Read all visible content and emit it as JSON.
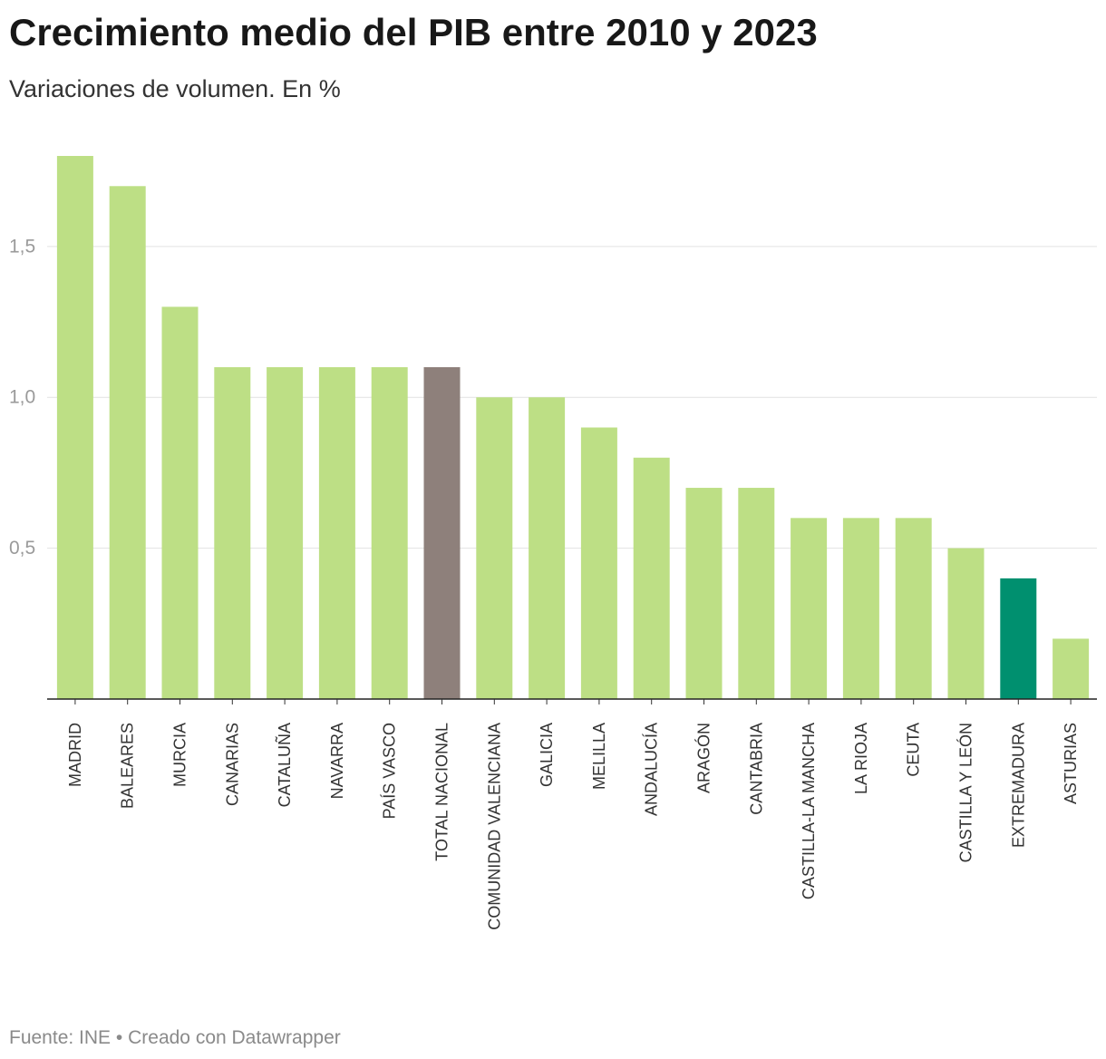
{
  "chart_data": {
    "type": "bar",
    "title": "Crecimiento medio del PIB entre 2010 y 2023",
    "subtitle": "Variaciones de volumen. En %",
    "categories": [
      "MADRID",
      "BALEARES",
      "MURCIA",
      "CANARIAS",
      "CATALUÑA",
      "NAVARRA",
      "PAÍS VASCO",
      "TOTAL NACIONAL",
      "COMUNIDAD VALENCIANA",
      "GALICIA",
      "MELILLA",
      "ANDALUCÍA",
      "ARAGÓN",
      "CANTABRIA",
      "CASTILLA-LA MANCHA",
      "LA RIOJA",
      "CEUTA",
      "CASTILLA Y LEÓN",
      "EXTREMADURA",
      "ASTURIAS"
    ],
    "values": [
      1.8,
      1.7,
      1.3,
      1.1,
      1.1,
      1.1,
      1.1,
      1.1,
      1.0,
      1.0,
      0.9,
      0.8,
      0.7,
      0.7,
      0.6,
      0.6,
      0.6,
      0.5,
      0.4,
      0.2
    ],
    "ylim": [
      0,
      1.8
    ],
    "yticks": [
      {
        "value": 0.5,
        "label": "0,5"
      },
      {
        "value": 1.0,
        "label": "1,0"
      },
      {
        "value": 1.5,
        "label": "1,5"
      }
    ],
    "grid": true,
    "colors": {
      "default": "#bddf85",
      "highlights": [
        {
          "category": "TOTAL NACIONAL",
          "color": "#8e807b"
        },
        {
          "category": "EXTREMADURA",
          "color": "#00906f"
        }
      ]
    }
  },
  "footer": {
    "source": "Fuente: INE",
    "separator": "•",
    "credit": "Creado con Datawrapper"
  }
}
